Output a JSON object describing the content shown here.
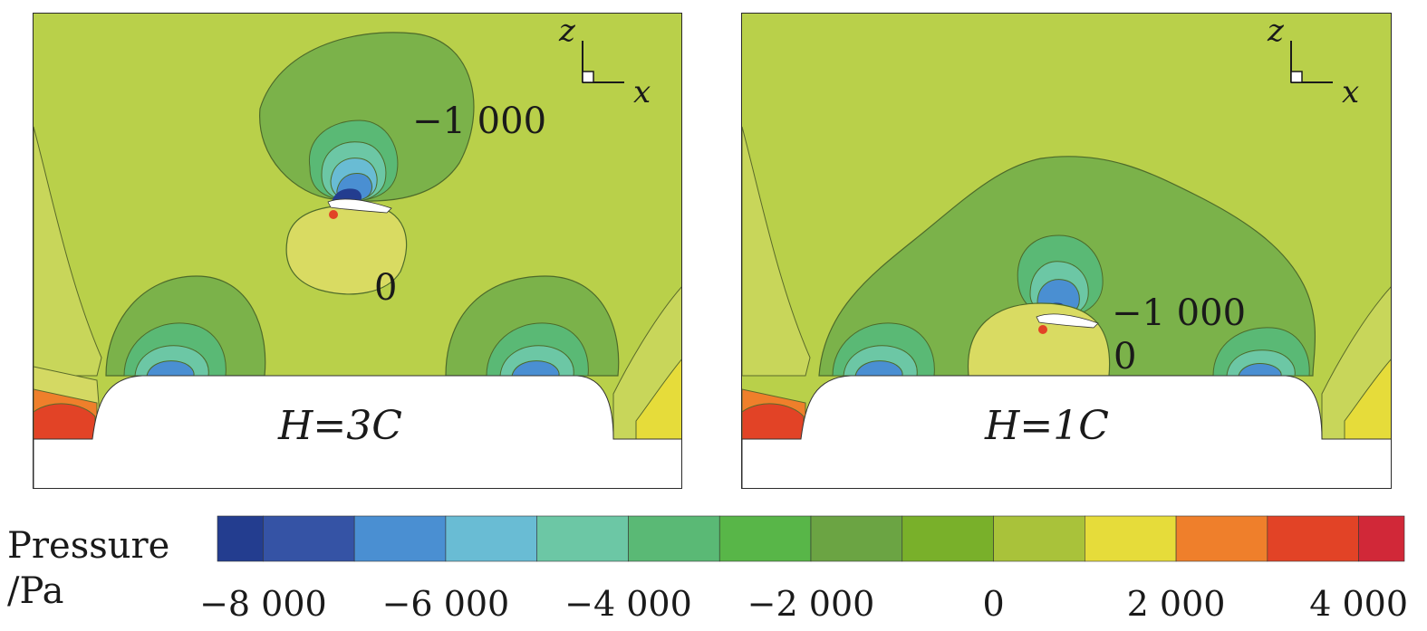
{
  "panels": [
    {
      "id": "left",
      "height_label": "H=3C",
      "contour_labels": [
        "−1 000",
        "0"
      ]
    },
    {
      "id": "right",
      "height_label": "H=1C",
      "contour_labels": [
        "−1 000",
        "0"
      ]
    }
  ],
  "axes": {
    "vertical": "z",
    "horizontal": "x"
  },
  "legend": {
    "title_line1": "Pressure",
    "title_line2": "/Pa",
    "colors": [
      "#233d8f",
      "#3553a5",
      "#4a8fd2",
      "#69bcd4",
      "#6cc7a5",
      "#5ab975",
      "#58b648",
      "#6ba443",
      "#79b02a",
      "#a9c23a",
      "#e6dc3a",
      "#ef7f2b",
      "#e24326",
      "#d12838"
    ],
    "ticks": [
      "−8 000",
      "−6 000",
      "−4 000",
      "−2 000",
      "0",
      "2 000",
      "4 000"
    ]
  },
  "background_color": "#b9d04a"
}
